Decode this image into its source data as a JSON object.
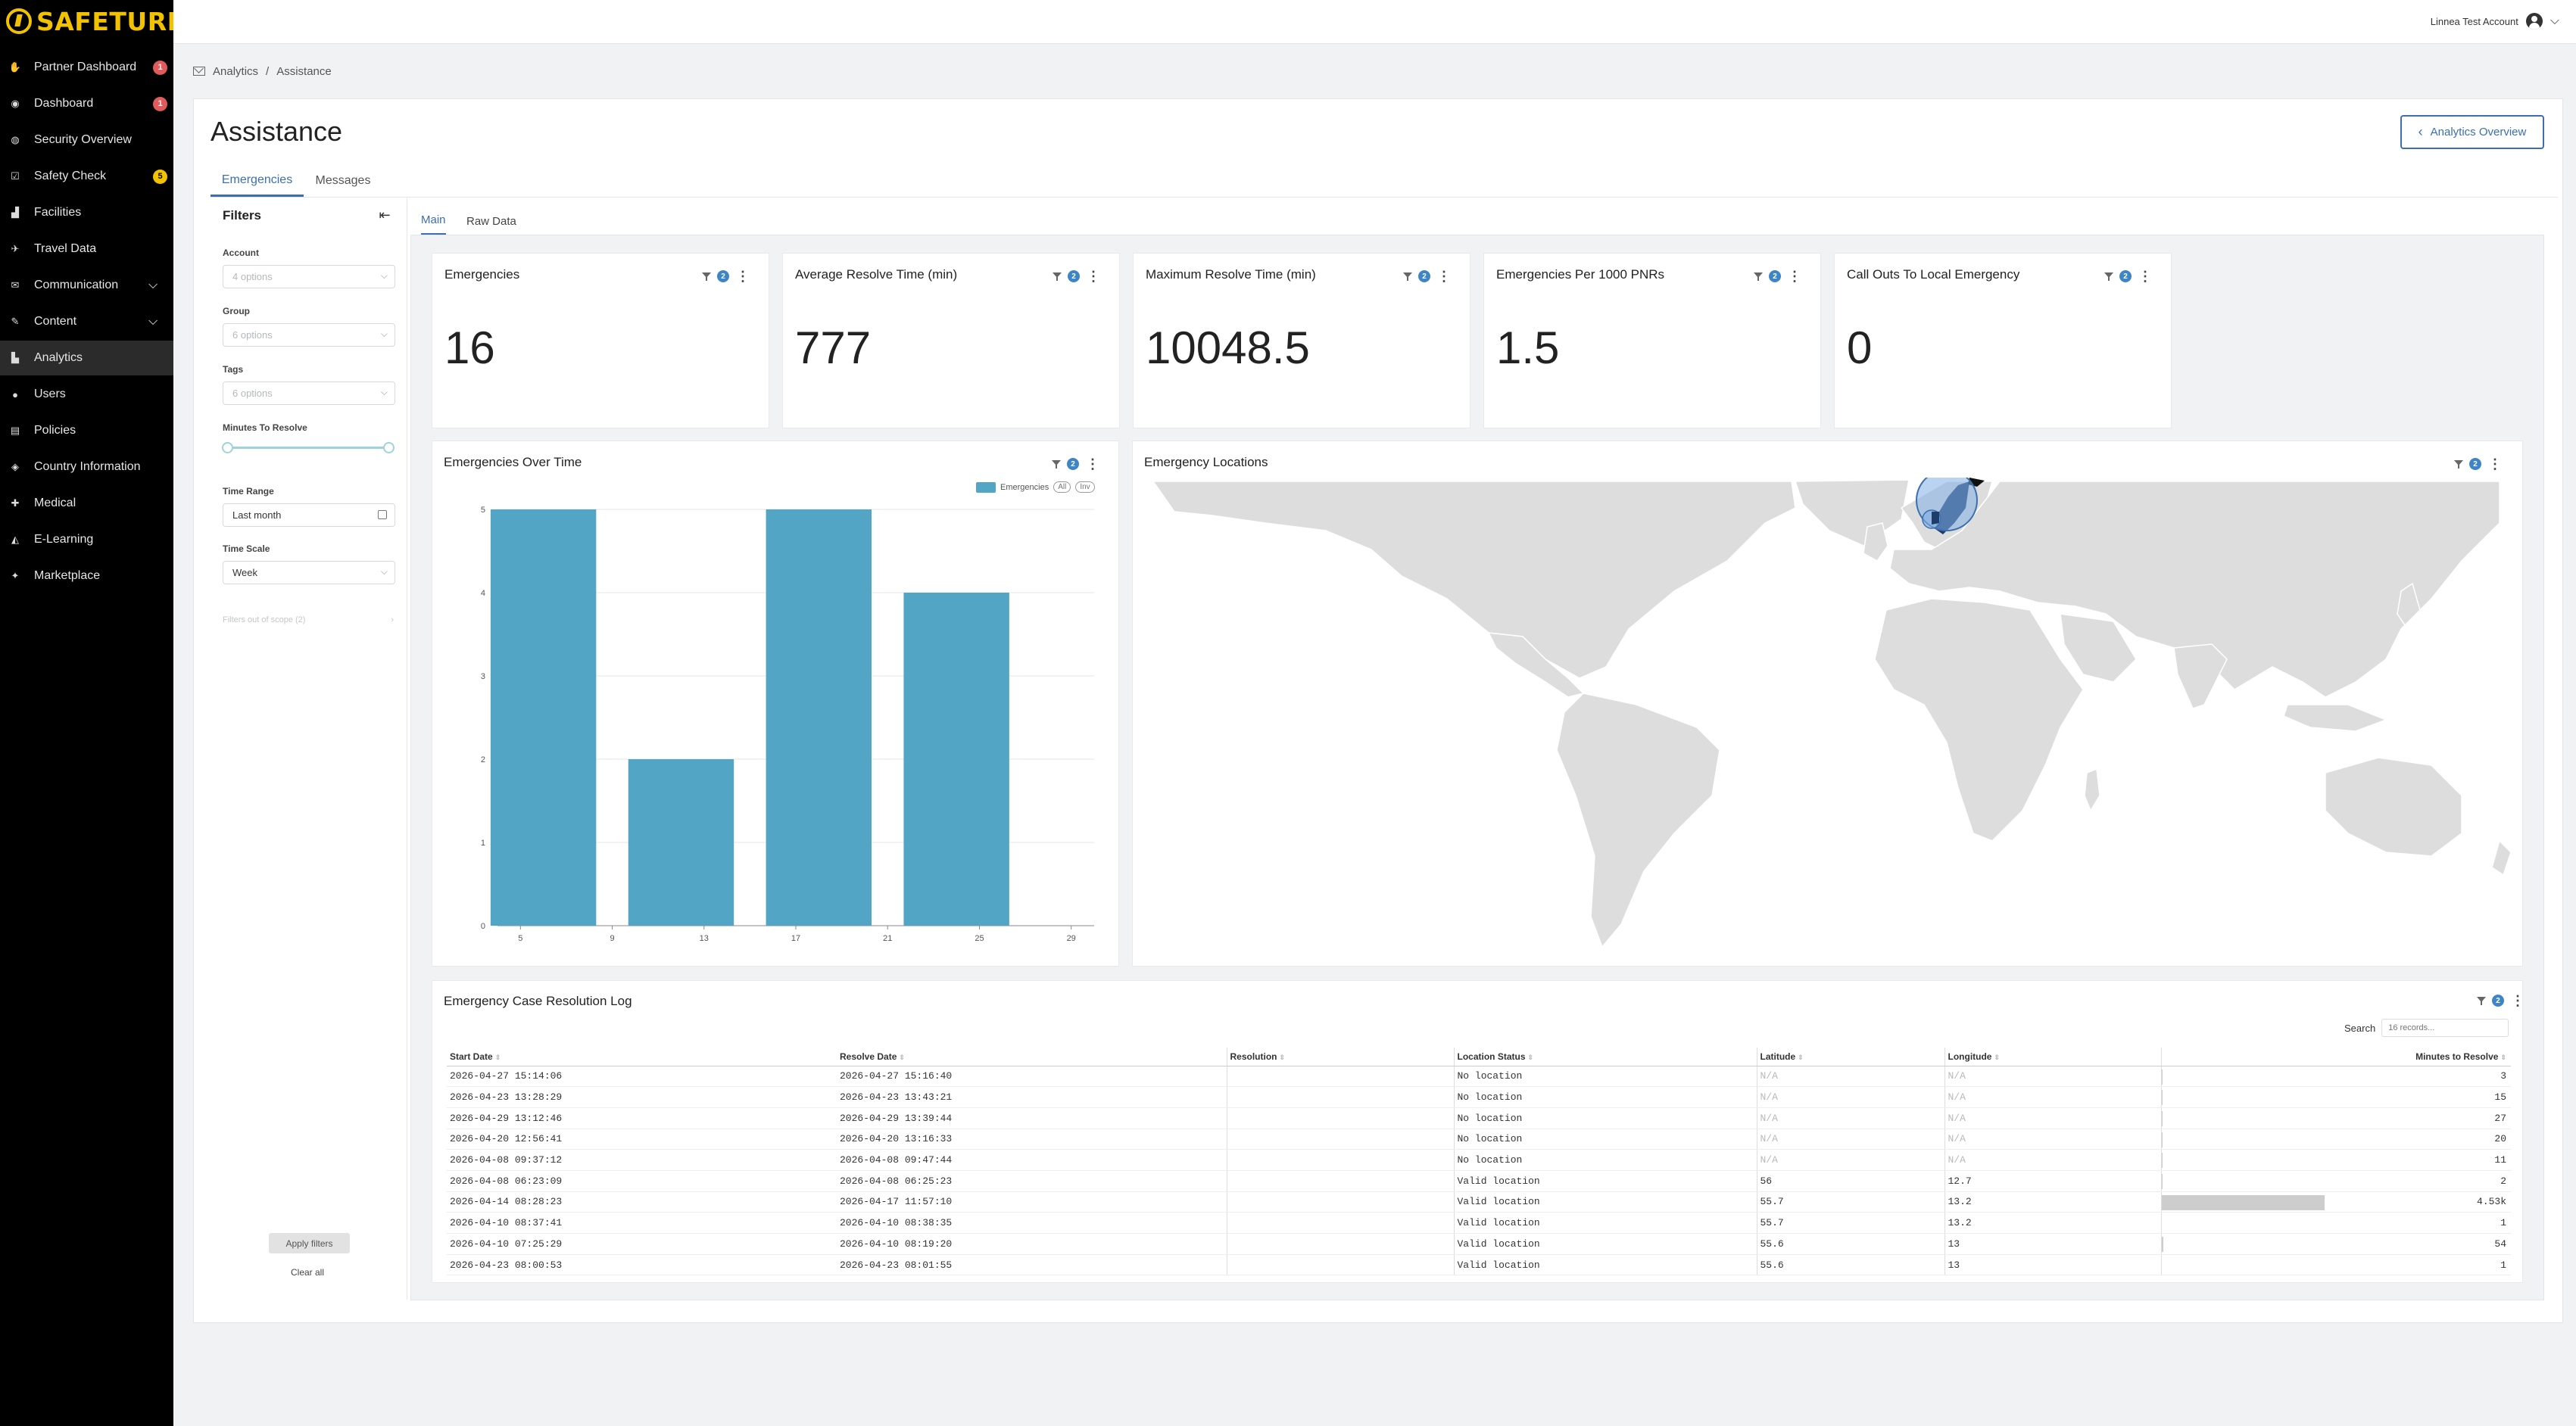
{
  "brand": {
    "name": "SAFETURE",
    "reg": "®"
  },
  "sidebar": {
    "items": [
      {
        "label": "Partner Dashboard",
        "icon": "handshake-icon",
        "glyph": "✋",
        "badge": "1",
        "badge_color": "red"
      },
      {
        "label": "Dashboard",
        "icon": "dashboard-icon",
        "glyph": "◉",
        "badge": "1",
        "badge_color": "red"
      },
      {
        "label": "Security Overview",
        "icon": "globe-icon",
        "glyph": "◍"
      },
      {
        "label": "Safety Check",
        "icon": "safety-check-icon",
        "glyph": "☑",
        "badge": "5",
        "badge_color": "yellow"
      },
      {
        "label": "Facilities",
        "icon": "building-icon",
        "glyph": "▟"
      },
      {
        "label": "Travel Data",
        "icon": "plane-icon",
        "glyph": "✈"
      },
      {
        "label": "Communication",
        "icon": "chat-icon",
        "glyph": "✉",
        "chevron": true
      },
      {
        "label": "Content",
        "icon": "pencil-icon",
        "glyph": "✎",
        "chevron": true
      },
      {
        "label": "Analytics",
        "icon": "bar-chart-icon",
        "glyph": "▙",
        "active": true
      },
      {
        "label": "Users",
        "icon": "user-icon",
        "glyph": "●"
      },
      {
        "label": "Policies",
        "icon": "document-icon",
        "glyph": "▤"
      },
      {
        "label": "Country Information",
        "icon": "info-icon",
        "glyph": "◈"
      },
      {
        "label": "Medical",
        "icon": "medical-kit-icon",
        "glyph": "✚"
      },
      {
        "label": "E-Learning",
        "icon": "graduation-cap-icon",
        "glyph": "◭"
      },
      {
        "label": "Marketplace",
        "icon": "puzzle-icon",
        "glyph": "✦"
      }
    ]
  },
  "topbar": {
    "account": "Linnea Test Account"
  },
  "breadcrumb": {
    "root": "Analytics",
    "separator": "/",
    "current": "Assistance"
  },
  "page": {
    "title": "Assistance",
    "overview_button": "Analytics Overview"
  },
  "tabs": [
    {
      "label": "Emergencies",
      "active": true
    },
    {
      "label": "Messages"
    }
  ],
  "subtabs": [
    {
      "label": "Main",
      "active": true
    },
    {
      "label": "Raw Data"
    }
  ],
  "filters": {
    "title": "Filters",
    "account": {
      "label": "Account",
      "placeholder": "4 options"
    },
    "group": {
      "label": "Group",
      "placeholder": "6 options"
    },
    "tags": {
      "label": "Tags",
      "placeholder": "6 options"
    },
    "minutes": {
      "label": "Minutes To Resolve"
    },
    "time_range": {
      "label": "Time Range",
      "value": "Last month"
    },
    "time_scale": {
      "label": "Time Scale",
      "value": "Week"
    },
    "out_of_scope": "Filters out of scope (2)",
    "apply": "Apply filters",
    "clear": "Clear all"
  },
  "tool_badge": "2",
  "kpis": [
    {
      "title": "Emergencies",
      "value": "16"
    },
    {
      "title": "Average Resolve Time (min)",
      "value": "777"
    },
    {
      "title": "Maximum Resolve Time (min)",
      "value": "10048.5"
    },
    {
      "title": "Emergencies Per 1000 PNRs",
      "value": "1.5"
    },
    {
      "title": "Call Outs To Local Emergency",
      "value": "0"
    }
  ],
  "chart_panel": {
    "title": "Emergencies Over Time",
    "legend_all": "All",
    "legend_inv": "Inv"
  },
  "chart_data": {
    "type": "bar",
    "title": "Emergencies Over Time",
    "x_ticks": [
      5,
      9,
      13,
      17,
      21,
      25,
      29
    ],
    "y_ticks": [
      0,
      1,
      2,
      3,
      4,
      5
    ],
    "xlim": [
      4,
      30
    ],
    "ylim": [
      0,
      5
    ],
    "series": [
      {
        "name": "Emergencies",
        "color": "#52a5c5",
        "points": [
          {
            "x": 6,
            "y": 5
          },
          {
            "x": 12,
            "y": 2
          },
          {
            "x": 18,
            "y": 5
          },
          {
            "x": 24,
            "y": 4
          }
        ]
      }
    ],
    "grid": true,
    "legend": "top-right"
  },
  "map_panel": {
    "title": "Emergency Locations"
  },
  "table": {
    "title": "Emergency Case Resolution Log",
    "search_label": "Search",
    "search_placeholder": "16 records...",
    "columns": [
      "Start Date",
      "Resolve Date",
      "Resolution",
      "Location Status",
      "Latitude",
      "Longitude",
      "Minutes to Resolve"
    ],
    "rows": [
      {
        "start": "2026-04-27 15:14:06",
        "resolve": "2026-04-27 15:16:40",
        "resolution": "",
        "status": "No location",
        "lat": "N/A",
        "lon": "N/A",
        "minutes": "3",
        "minutes_value": 3
      },
      {
        "start": "2026-04-23 13:28:29",
        "resolve": "2026-04-23 13:43:21",
        "resolution": "",
        "status": "No location",
        "lat": "N/A",
        "lon": "N/A",
        "minutes": "15",
        "minutes_value": 15
      },
      {
        "start": "2026-04-29 13:12:46",
        "resolve": "2026-04-29 13:39:44",
        "resolution": "",
        "status": "No location",
        "lat": "N/A",
        "lon": "N/A",
        "minutes": "27",
        "minutes_value": 27
      },
      {
        "start": "2026-04-20 12:56:41",
        "resolve": "2026-04-20 13:16:33",
        "resolution": "",
        "status": "No location",
        "lat": "N/A",
        "lon": "N/A",
        "minutes": "20",
        "minutes_value": 20
      },
      {
        "start": "2026-04-08 09:37:12",
        "resolve": "2026-04-08 09:47:44",
        "resolution": "",
        "status": "No location",
        "lat": "N/A",
        "lon": "N/A",
        "minutes": "11",
        "minutes_value": 11
      },
      {
        "start": "2026-04-08 06:23:09",
        "resolve": "2026-04-08 06:25:23",
        "resolution": "",
        "status": "Valid location",
        "lat": "56",
        "lon": "12.7",
        "minutes": "2",
        "minutes_value": 2
      },
      {
        "start": "2026-04-14 08:28:23",
        "resolve": "2026-04-17 11:57:10",
        "resolution": "",
        "status": "Valid location",
        "lat": "55.7",
        "lon": "13.2",
        "minutes": "4.53k",
        "minutes_value": 4530
      },
      {
        "start": "2026-04-10 08:37:41",
        "resolve": "2026-04-10 08:38:35",
        "resolution": "",
        "status": "Valid location",
        "lat": "55.7",
        "lon": "13.2",
        "minutes": "1",
        "minutes_value": 1
      },
      {
        "start": "2026-04-10 07:25:29",
        "resolve": "2026-04-10 08:19:20",
        "resolution": "",
        "status": "Valid location",
        "lat": "55.6",
        "lon": "13",
        "minutes": "54",
        "minutes_value": 54
      },
      {
        "start": "2026-04-23 08:00:53",
        "resolve": "2026-04-23 08:01:55",
        "resolution": "",
        "status": "Valid location",
        "lat": "55.6",
        "lon": "13",
        "minutes": "1",
        "minutes_value": 1
      }
    ]
  },
  "colors": {
    "accent": "#3b6fb0",
    "bar": "#52a5c5",
    "map_land": "#dddddd",
    "map_sweden": "#1f3d6b",
    "bubble": "#7faee3"
  }
}
